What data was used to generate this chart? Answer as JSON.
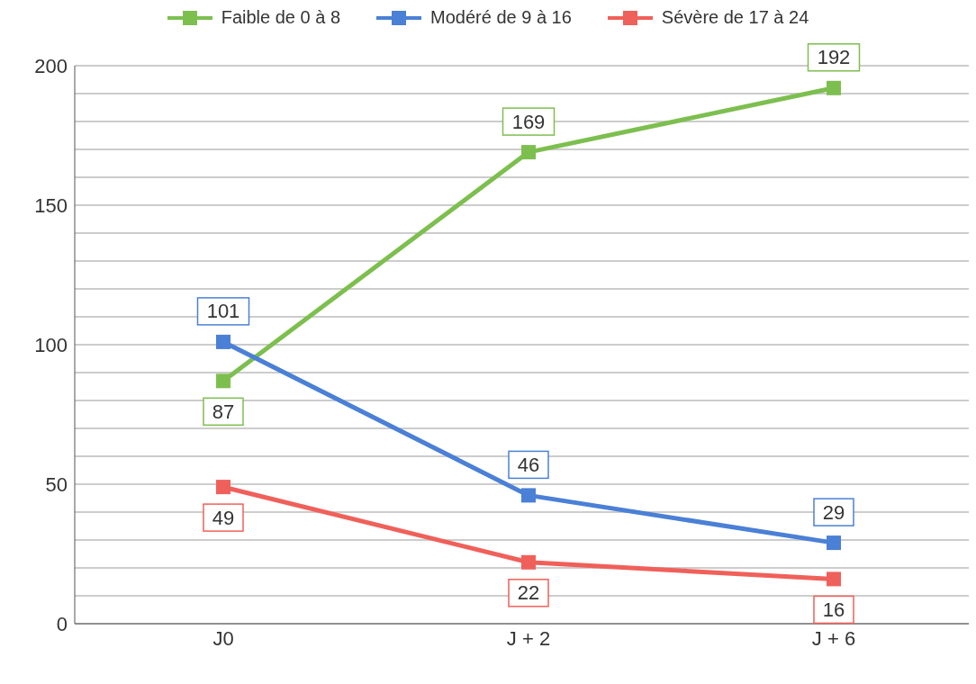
{
  "chart_data": {
    "type": "line",
    "categories": [
      "J0",
      "J + 2",
      "J + 6"
    ],
    "series": [
      {
        "name": "Faible de 0 à 8",
        "color": "#7dbf4f",
        "values": [
          87,
          169,
          192
        ]
      },
      {
        "name": "Modéré de 9 à 16",
        "color": "#4a80d6",
        "values": [
          101,
          46,
          29
        ]
      },
      {
        "name": "Sévère de 17 à 24",
        "color": "#f0605a",
        "values": [
          49,
          22,
          16
        ]
      }
    ],
    "ylim": [
      0,
      200
    ],
    "yticks": [
      0,
      {
        "value": 10,
        "label": null
      },
      {
        "value": 20,
        "label": null
      },
      {
        "value": 30,
        "label": null
      },
      {
        "value": 40,
        "label": null
      },
      50,
      {
        "value": 60,
        "label": null
      },
      {
        "value": 70,
        "label": null
      },
      {
        "value": 80,
        "label": null
      },
      {
        "value": 90,
        "label": null
      },
      100,
      {
        "value": 110,
        "label": null
      },
      {
        "value": 120,
        "label": null
      },
      {
        "value": 130,
        "label": null
      },
      {
        "value": 140,
        "label": null
      },
      150,
      {
        "value": 160,
        "label": null
      },
      {
        "value": 170,
        "label": null
      },
      {
        "value": 180,
        "label": null
      },
      {
        "value": 190,
        "label": null
      },
      200
    ],
    "grid": "y",
    "legend": "top",
    "marker": "square",
    "line_style": "solid",
    "data_labels": true
  }
}
